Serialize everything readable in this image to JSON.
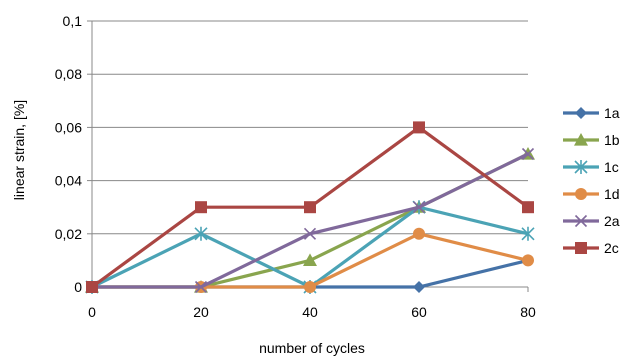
{
  "chart_data": {
    "type": "line",
    "title": "",
    "xlabel": "number of cycles",
    "ylabel": "linear strain, [%]",
    "x": [
      0,
      20,
      40,
      60,
      80
    ],
    "x_ticks": [
      "0",
      "20",
      "40",
      "60",
      "80"
    ],
    "y_ticks": [
      "0",
      "0,02",
      "0,04",
      "0,06",
      "0,08",
      "0,1"
    ],
    "ylim": [
      0,
      0.1
    ],
    "grid": "horizontal",
    "legend_position": "right",
    "series": [
      {
        "name": "1a",
        "values": [
          0,
          0,
          0,
          0,
          0.01
        ],
        "color": "#4572A7",
        "marker": "diamond"
      },
      {
        "name": "1b",
        "values": [
          0,
          0,
          0.01,
          0.03,
          0.05
        ],
        "color": "#89A54E",
        "marker": "triangle"
      },
      {
        "name": "1c",
        "values": [
          0,
          0.02,
          0,
          0.03,
          0.02
        ],
        "color": "#4BA3B5",
        "marker": "star"
      },
      {
        "name": "1d",
        "values": [
          0,
          0,
          0,
          0.02,
          0.01
        ],
        "color": "#E08C47",
        "marker": "circle"
      },
      {
        "name": "2a",
        "values": [
          0,
          0,
          0.02,
          0.03,
          0.05
        ],
        "color": "#80699B",
        "marker": "x"
      },
      {
        "name": "2c",
        "values": [
          0,
          0.03,
          0.03,
          0.06,
          0.03
        ],
        "color": "#AA4643",
        "marker": "square"
      }
    ]
  }
}
